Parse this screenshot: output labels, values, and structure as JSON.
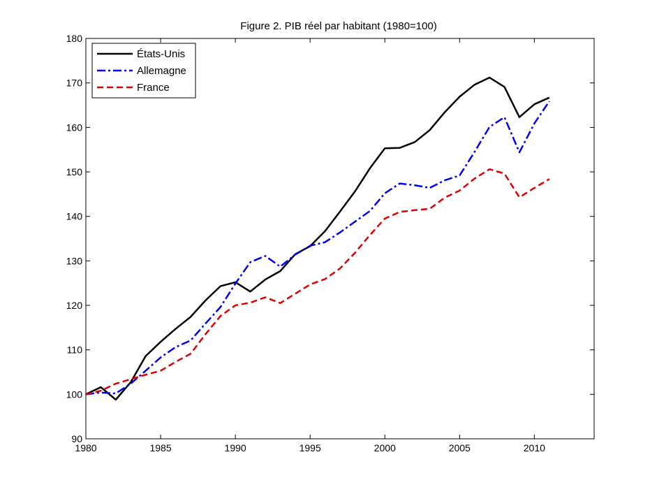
{
  "chart_data": {
    "type": "line",
    "title": "Figure 2. PIB réel par habitant (1980=100)",
    "xlabel": "",
    "ylabel": "",
    "xlim": [
      1980,
      2014
    ],
    "ylim": [
      90,
      180
    ],
    "xticks": [
      1980,
      1985,
      1990,
      1995,
      2000,
      2005,
      2010
    ],
    "yticks": [
      90,
      100,
      110,
      120,
      130,
      140,
      150,
      160,
      170,
      180
    ],
    "legend_position": "top-left",
    "grid": false,
    "x": [
      1980,
      1981,
      1982,
      1983,
      1984,
      1985,
      1986,
      1987,
      1988,
      1989,
      1990,
      1991,
      1992,
      1993,
      1994,
      1995,
      1996,
      1997,
      1998,
      1999,
      2000,
      2001,
      2002,
      2003,
      2004,
      2005,
      2006,
      2007,
      2008,
      2009,
      2010,
      2011
    ],
    "series": [
      {
        "name": "États-Unis",
        "color": "#000000",
        "dash": "solid",
        "values": [
          100,
          101.6,
          98.8,
          102.7,
          108.6,
          111.8,
          114.7,
          117.4,
          121.1,
          124.3,
          125.2,
          123.1,
          125.8,
          127.7,
          131.5,
          133.3,
          136.7,
          141.1,
          145.6,
          150.8,
          155.3,
          155.4,
          156.7,
          159.4,
          163.4,
          166.9,
          169.6,
          171.2,
          169.1,
          162.3,
          165.2,
          166.7
        ]
      },
      {
        "name": "Allemagne",
        "color": "#0000ee",
        "dash": "dashdot",
        "values": [
          100,
          100.4,
          100.2,
          102.4,
          105.3,
          108.3,
          110.6,
          112.1,
          115.9,
          119.6,
          124.9,
          129.7,
          131.1,
          128.7,
          131.4,
          133.4,
          134.2,
          136.4,
          138.8,
          141.2,
          145.2,
          147.4,
          147.0,
          146.4,
          148.1,
          149.2,
          154.5,
          160.1,
          162.3,
          154.4,
          160.9,
          165.9
        ]
      },
      {
        "name": "France",
        "color": "#dd0000",
        "dash": "dashed",
        "values": [
          100,
          100.8,
          102.4,
          103.4,
          104.4,
          105.3,
          107.3,
          109.1,
          113.5,
          117.6,
          120.0,
          120.6,
          121.8,
          120.5,
          122.6,
          124.7,
          125.9,
          128.3,
          131.8,
          135.8,
          139.5,
          141.0,
          141.4,
          141.7,
          144.2,
          145.8,
          148.5,
          150.6,
          149.6,
          144.3,
          146.4,
          148.4
        ]
      }
    ]
  }
}
